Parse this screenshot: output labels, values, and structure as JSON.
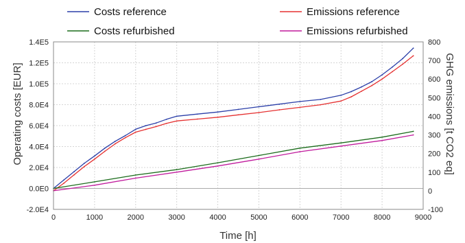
{
  "chart_data": {
    "type": "line",
    "xlabel": "Time [h]",
    "ylabel": "Operating costs [EUR]",
    "y2label": "GHG emissions [t CO2 eq]",
    "xlim": [
      0,
      9000
    ],
    "ylim": [
      -20000,
      140000
    ],
    "y2lim": [
      -100,
      800
    ],
    "xticks": [
      "0",
      "1000",
      "2000",
      "3000",
      "4000",
      "5000",
      "6000",
      "7000",
      "8000",
      "9000"
    ],
    "yticks": [
      "-2.0E4",
      "0.0E0",
      "2.0E4",
      "4.0E4",
      "6.0E4",
      "8.0E4",
      "1.0E5",
      "1.2E5",
      "1.4E5"
    ],
    "y2ticks": [
      "-100",
      "0",
      "100",
      "200",
      "300",
      "400",
      "500",
      "600",
      "700",
      "800"
    ],
    "grid": true,
    "legend_position": "top",
    "series": [
      {
        "name": "Costs reference",
        "axis": "left",
        "color": "#2a3ea8",
        "x": [
          0,
          250,
          500,
          750,
          1000,
          1250,
          1500,
          1750,
          2000,
          2250,
          2500,
          2750,
          3000,
          3500,
          4000,
          4500,
          5000,
          5500,
          6000,
          6500,
          7000,
          7250,
          7500,
          7750,
          8000,
          8250,
          8500,
          8760
        ],
        "values": [
          0,
          8000,
          16000,
          24000,
          31000,
          38500,
          45000,
          50500,
          56500,
          60000,
          62500,
          66000,
          69000,
          71000,
          73000,
          75500,
          78000,
          80500,
          83000,
          85000,
          89000,
          92500,
          97000,
          102000,
          108500,
          116000,
          124000,
          134000
        ]
      },
      {
        "name": "Emissions reference",
        "axis": "right",
        "color": "#e53030",
        "x": [
          0,
          250,
          500,
          750,
          1000,
          1250,
          1500,
          1750,
          2000,
          2250,
          2500,
          2750,
          3000,
          3500,
          4000,
          4500,
          5000,
          5500,
          6000,
          6500,
          7000,
          7250,
          7500,
          7750,
          8000,
          8250,
          8500,
          8760
        ],
        "values": [
          0,
          40,
          85,
          130,
          170,
          212,
          252,
          285,
          315,
          330,
          345,
          362,
          375,
          385,
          395,
          408,
          420,
          435,
          448,
          462,
          482,
          505,
          535,
          565,
          600,
          640,
          680,
          725
        ]
      },
      {
        "name": "Costs refurbished",
        "axis": "left",
        "color": "#1a6b1a",
        "x": [
          0,
          1000,
          2000,
          3000,
          4000,
          5000,
          6000,
          7000,
          8000,
          8760
        ],
        "values": [
          0,
          6300,
          12800,
          18000,
          24500,
          31500,
          38500,
          43500,
          49000,
          54500
        ]
      },
      {
        "name": "Emissions refurbished",
        "axis": "right",
        "color": "#c01a9c",
        "x": [
          0,
          1000,
          2000,
          3000,
          4000,
          5000,
          6000,
          7000,
          8000,
          8760
        ],
        "values": [
          0,
          30,
          68,
          100,
          133,
          170,
          210,
          240,
          270,
          300
        ]
      }
    ]
  }
}
